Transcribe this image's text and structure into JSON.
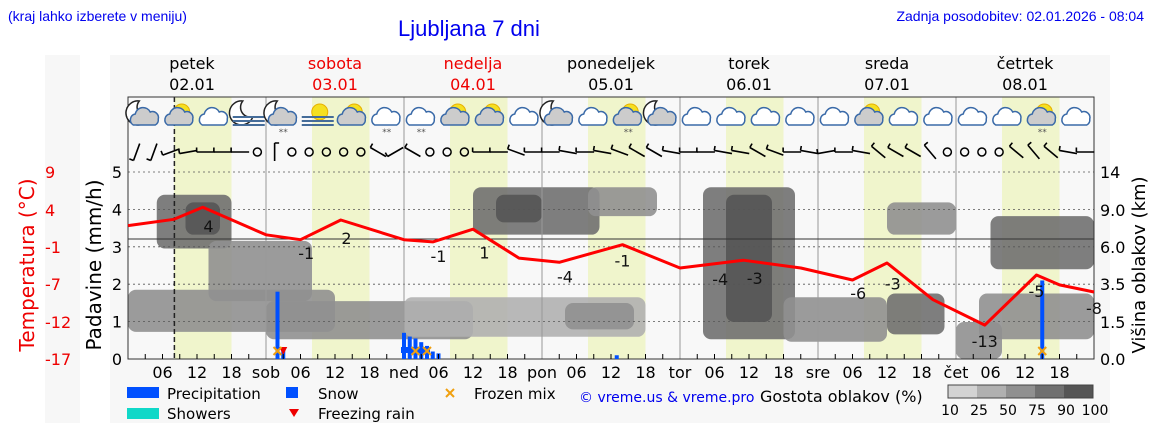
{
  "header": {
    "left_note": "(kraj lahko izberete v meniju)",
    "title": "Ljubljana 7 dni",
    "updated": "Zadnja posodobitev: 02.01.2026 - 08:04"
  },
  "days": [
    {
      "name": "petek",
      "date": "02.01",
      "weekend": false
    },
    {
      "name": "sobota",
      "date": "03.01",
      "weekend": true
    },
    {
      "name": "nedelja",
      "date": "04.01",
      "weekend": true
    },
    {
      "name": "ponedeljek",
      "date": "05.01",
      "weekend": false
    },
    {
      "name": "torek",
      "date": "06.01",
      "weekend": false
    },
    {
      "name": "sreda",
      "date": "07.01",
      "weekend": false
    },
    {
      "name": "četrtek",
      "date": "08.01",
      "weekend": false
    }
  ],
  "chart_data": {
    "type": "meteogram",
    "x_day_abbrev": [
      "",
      "sob",
      "ned",
      "pon",
      "tor",
      "sre",
      "čet"
    ],
    "x_hour_ticks": [
      "06",
      "12",
      "18"
    ],
    "now": "02.01 08:04",
    "daylight_hours": [
      8,
      18
    ],
    "left_axis": {
      "label": "Padavine (mm/h)",
      "ticks": [
        0,
        1,
        2,
        3,
        4,
        5
      ],
      "range": [
        0,
        5
      ]
    },
    "temp_axis": {
      "label": "Temperatura (°C)",
      "ticks": [
        -17,
        -12,
        -7,
        -1,
        4,
        9
      ],
      "range": [
        -17,
        9.5
      ]
    },
    "right_axis": {
      "label": "Višina oblakov (km)",
      "ticks": [
        0,
        1.5,
        3.5,
        6.0,
        9.0,
        14
      ]
    },
    "zero_line_temp": 0,
    "temperature": [
      [
        "02.01 00",
        1.9
      ],
      [
        "02.01 08",
        2.8
      ],
      [
        "02.01 13",
        4.5
      ],
      [
        "03.01 00",
        0.6
      ],
      [
        "03.01 06",
        -0.1
      ],
      [
        "03.01 13",
        2.7
      ],
      [
        "04.01 00",
        -0.1
      ],
      [
        "04.01 05",
        -0.4
      ],
      [
        "04.01 12",
        1.4
      ],
      [
        "04.01 20",
        -2.7
      ],
      [
        "05.01 03",
        -3.3
      ],
      [
        "05.01 14",
        -0.8
      ],
      [
        "06.01 00",
        -4.1
      ],
      [
        "06.01 11",
        -3.0
      ],
      [
        "06.01 21",
        -4.1
      ],
      [
        "07.01 06",
        -5.8
      ],
      [
        "07.01 12",
        -3.4
      ],
      [
        "07.01 20",
        -8.6
      ],
      [
        "08.01 05",
        -12.2
      ],
      [
        "08.01 14",
        -5.1
      ],
      [
        "08.01 18",
        -6.5
      ],
      [
        "09.01 00",
        -7.5
      ]
    ],
    "temp_labels": [
      [
        "02.01 14",
        "4"
      ],
      [
        "03.01 07",
        "-1"
      ],
      [
        "03.01 14",
        "2"
      ],
      [
        "04.01 06",
        "-1"
      ],
      [
        "04.01 14",
        "1"
      ],
      [
        "05.01 04",
        "-4"
      ],
      [
        "05.01 14",
        "-1"
      ],
      [
        "06.01 07",
        "-4"
      ],
      [
        "06.01 13",
        "-3"
      ],
      [
        "07.01 07",
        "-6"
      ],
      [
        "07.01 13",
        "-3"
      ],
      [
        "08.01 05",
        "-13"
      ],
      [
        "08.01 14",
        "-5"
      ],
      [
        "09.01 00",
        "-8"
      ]
    ],
    "precipitation": [
      [
        "03.01 02",
        1.8
      ],
      [
        "03.01 03",
        0.25
      ],
      [
        "04.01 00",
        0.7
      ],
      [
        "04.01 01",
        0.6
      ],
      [
        "04.01 02",
        0.55
      ],
      [
        "04.01 03",
        0.45
      ],
      [
        "04.01 04",
        0.35
      ],
      [
        "04.01 05",
        0.2
      ],
      [
        "04.01 06",
        0.15
      ],
      [
        "05.01 13",
        0.1
      ],
      [
        "08.01 15",
        2.1
      ]
    ],
    "snow": [
      "04.01 00",
      "04.01 01",
      "04.01 02",
      "04.01 03",
      "04.01 04"
    ],
    "freezing_rain": [
      "03.01 03"
    ],
    "frozen_mix": [
      "03.01 02",
      "04.01 02",
      "04.01 04",
      "08.01 15"
    ],
    "clouds": [
      [
        "02.01 00",
        "03.01 12",
        1.1,
        3.2,
        50
      ],
      [
        "02.01 05",
        "02.01 18",
        5.9,
        11,
        75
      ],
      [
        "02.01 10",
        "02.01 16",
        7,
        10,
        90
      ],
      [
        "02.01 14",
        "03.01 08",
        2.6,
        6.5,
        50
      ],
      [
        "03.01 00",
        "04.01 12",
        0.8,
        2.6,
        50
      ],
      [
        "04.01 12",
        "05.01 10",
        7,
        12,
        75
      ],
      [
        "04.01 16",
        "05.01 00",
        8,
        11,
        90
      ],
      [
        "05.01 08",
        "05.01 20",
        8.5,
        12,
        50
      ],
      [
        "04.01 00",
        "05.01 18",
        0.9,
        2.8,
        25
      ],
      [
        "05.01 04",
        "05.01 16",
        1.2,
        2.5,
        50
      ],
      [
        "06.01 04",
        "06.01 20",
        0.8,
        12,
        75
      ],
      [
        "06.01 08",
        "06.01 16",
        1.5,
        11,
        90
      ],
      [
        "06.01 18",
        "07.01 12",
        0.7,
        2.8,
        50
      ],
      [
        "07.01 12",
        "07.01 22",
        1,
        3,
        75
      ],
      [
        "07.01 12",
        "08.01 00",
        7,
        10,
        50
      ],
      [
        "08.01 00",
        "08.01 08",
        0,
        1.5,
        50
      ],
      [
        "08.01 06",
        "09.01 00",
        4.5,
        8.5,
        75
      ],
      [
        "08.01 04",
        "09.01 00",
        0.8,
        3,
        50
      ]
    ],
    "icons": [
      "moon-cloud",
      "sun-cloud",
      "cloud",
      "moon-fog",
      "moon-cloud-snow",
      "sun-fog",
      "sun-cloud",
      "cloud-snow",
      "cloud-snow",
      "sun-cloud",
      "sun-cloud",
      "cloud",
      "moon-cloud",
      "cloud",
      "sun-cloud-snow",
      "moon-cloud",
      "cloud",
      "cloud",
      "cloud",
      "cloud",
      "cloud",
      "sun-cloud",
      "cloud",
      "cloud",
      "cloud",
      "cloud",
      "sun-cloud-snow",
      "cloud"
    ],
    "wind": [
      200,
      200,
      250,
      260,
      270,
      270,
      270,
      "calm",
      0,
      "calm",
      "calm",
      "calm",
      "calm",
      "calm",
      300,
      240,
      300,
      "calm",
      "calm",
      "calm",
      270,
      270,
      290,
      270,
      270,
      280,
      270,
      280,
      290,
      300,
      300,
      280,
      270,
      270,
      280,
      280,
      300,
      290,
      270,
      280,
      260,
      270,
      280,
      310,
      300,
      300,
      320,
      "calm",
      "calm",
      "calm",
      "calm",
      310,
      320,
      310,
      280,
      270
    ],
    "legend": {
      "precipitation": "Precipitation",
      "showers": "Showers",
      "snow": "Snow",
      "freezing_rain": "Freezing rain",
      "frozen_mix": "Frozen mix",
      "copyright": "© vreme.us & vreme.pro",
      "cloud_density": "Gostota oblakov (%)",
      "density_levels": [
        "10",
        "25",
        "50",
        "75",
        "90",
        "100"
      ]
    },
    "colors": {
      "temperature": "#ff0000",
      "precipitation": "#0050ff",
      "showers": "#10d8c8",
      "daylight": "#f0f5cc",
      "frozen_mix": "#f0a010",
      "density": [
        "#d3d3d3",
        "#b0b0b0",
        "#909090",
        "#707070",
        "#555555"
      ]
    }
  }
}
